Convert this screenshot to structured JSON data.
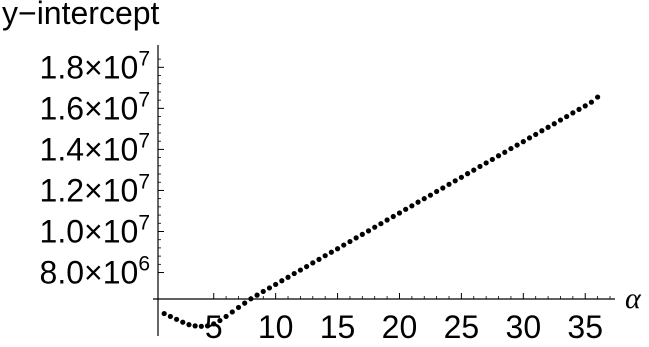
{
  "chart_data": {
    "type": "scatter",
    "title": "",
    "xlabel": "α",
    "ylabel": "y−intercept",
    "xlim": [
      0.5,
      37
    ],
    "ylim": [
      5200000,
      18600000
    ],
    "grid": false,
    "x_ticks": [
      5,
      10,
      15,
      20,
      25,
      30,
      35
    ],
    "x_tick_labels": [
      "5",
      "10",
      "15",
      "20",
      "25",
      "30",
      "35"
    ],
    "y_ticks": [
      8000000,
      10000000,
      12000000,
      14000000,
      16000000,
      18000000
    ],
    "y_tick_labels": [
      {
        "mantissa": "8.0",
        "exp": "6"
      },
      {
        "mantissa": "1.0",
        "exp": "7"
      },
      {
        "mantissa": "1.2",
        "exp": "7"
      },
      {
        "mantissa": "1.4",
        "exp": "7"
      },
      {
        "mantissa": "1.6",
        "exp": "7"
      },
      {
        "mantissa": "1.8",
        "exp": "7"
      }
    ],
    "series": [
      {
        "x": [
          1.0,
          1.5,
          2.0,
          2.5,
          3.0,
          3.5,
          4.0,
          4.5,
          5.0,
          5.5,
          6.0,
          6.5,
          7.0,
          7.5,
          8.0,
          8.5,
          9.0,
          9.5,
          10.0,
          10.5,
          11.0,
          11.5,
          12.0,
          12.5,
          13.0,
          13.5,
          14.0,
          14.5,
          15.0,
          15.5,
          16.0,
          16.5,
          17.0,
          17.5,
          18.0,
          18.5,
          19.0,
          19.5,
          20.0,
          20.5,
          21.0,
          21.5,
          22.0,
          22.5,
          23.0,
          23.5,
          24.0,
          24.5,
          25.0,
          25.5,
          26.0,
          26.5,
          27.0,
          27.5,
          28.0,
          28.5,
          29.0,
          29.5,
          30.0,
          30.5,
          31.0,
          31.5,
          32.0,
          32.5,
          33.0,
          33.5,
          34.0,
          34.5,
          35.0,
          35.5,
          36.0
        ],
        "y": [
          6000000,
          5860000,
          5720000,
          5580000,
          5460000,
          5400000,
          5380000,
          5400000,
          5500000,
          5660000,
          5860000,
          6080000,
          6300000,
          6510000,
          6720000,
          6900000,
          7080000,
          7250000,
          7420000,
          7600000,
          7770000,
          7950000,
          8120000,
          8290000,
          8470000,
          8640000,
          8820000,
          8990000,
          9160000,
          9340000,
          9510000,
          9690000,
          9860000,
          10030000,
          10210000,
          10380000,
          10560000,
          10730000,
          10900000,
          11080000,
          11250000,
          11430000,
          11600000,
          11770000,
          11950000,
          12120000,
          12300000,
          12470000,
          12640000,
          12820000,
          12990000,
          13170000,
          13340000,
          13510000,
          13690000,
          13860000,
          14040000,
          14210000,
          14380000,
          14560000,
          14730000,
          14910000,
          15080000,
          15250000,
          15430000,
          15600000,
          15780000,
          15950000,
          16120000,
          16300000,
          16550000
        ]
      }
    ]
  }
}
